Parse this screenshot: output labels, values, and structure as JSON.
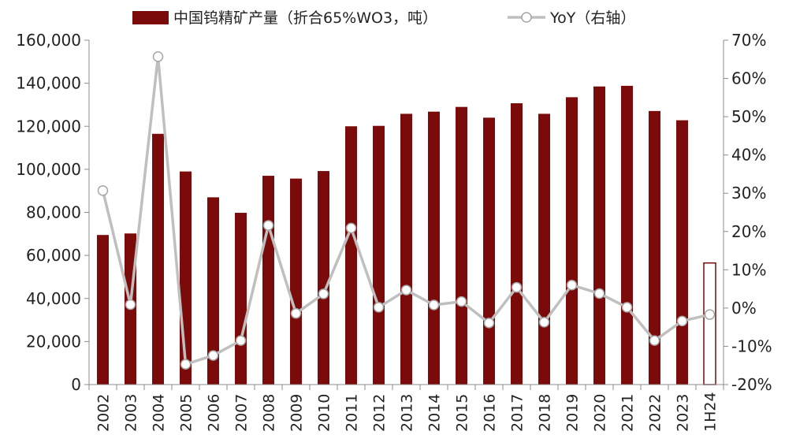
{
  "chart_data": {
    "type": "bar",
    "categories": [
      "2002",
      "2003",
      "2004",
      "2005",
      "2006",
      "2007",
      "2008",
      "2009",
      "2010",
      "2011",
      "2012",
      "2013",
      "2014",
      "2015",
      "2016",
      "2017",
      "2018",
      "2019",
      "2020",
      "2021",
      "2022",
      "2023",
      "1H24"
    ],
    "series": [
      {
        "name": "中国钨精矿产量（折合65%WO3，吨）",
        "axis": "left",
        "type": "bar",
        "color": "#7b0a0a",
        "values": [
          69500,
          70200,
          116500,
          99000,
          87000,
          79800,
          97000,
          95700,
          99200,
          120000,
          120200,
          125800,
          126800,
          129000,
          124000,
          130700,
          125800,
          133500,
          138500,
          138800,
          127100,
          122800,
          56500
        ]
      },
      {
        "name": "YoY（右轴）",
        "axis": "right",
        "type": "line",
        "color": "#bfbfbf",
        "values": [
          30.7,
          0.9,
          65.7,
          -14.7,
          -12.4,
          -8.5,
          21.6,
          -1.4,
          3.7,
          20.9,
          0.2,
          4.7,
          0.8,
          1.7,
          -3.9,
          5.4,
          -3.7,
          6.0,
          3.8,
          0.2,
          -8.5,
          -3.4,
          -1.7
        ]
      }
    ],
    "highlight_last_bar": {
      "fill": "#ffffff",
      "stroke": "#7b0a0a"
    },
    "left_axis": {
      "min": 0,
      "max": 160000,
      "step": 20000,
      "tick_labels": [
        "0",
        "20,000",
        "40,000",
        "60,000",
        "80,000",
        "100,000",
        "120,000",
        "140,000",
        "160,000"
      ]
    },
    "right_axis": {
      "min": -20,
      "max": 70,
      "step": 10,
      "tick_labels": [
        "-20%",
        "-10%",
        "0%",
        "10%",
        "20%",
        "30%",
        "40%",
        "50%",
        "60%",
        "70%"
      ]
    },
    "legend": {
      "position": "top"
    },
    "grid": false,
    "title": "",
    "xlabel": "",
    "ylabel": ""
  }
}
